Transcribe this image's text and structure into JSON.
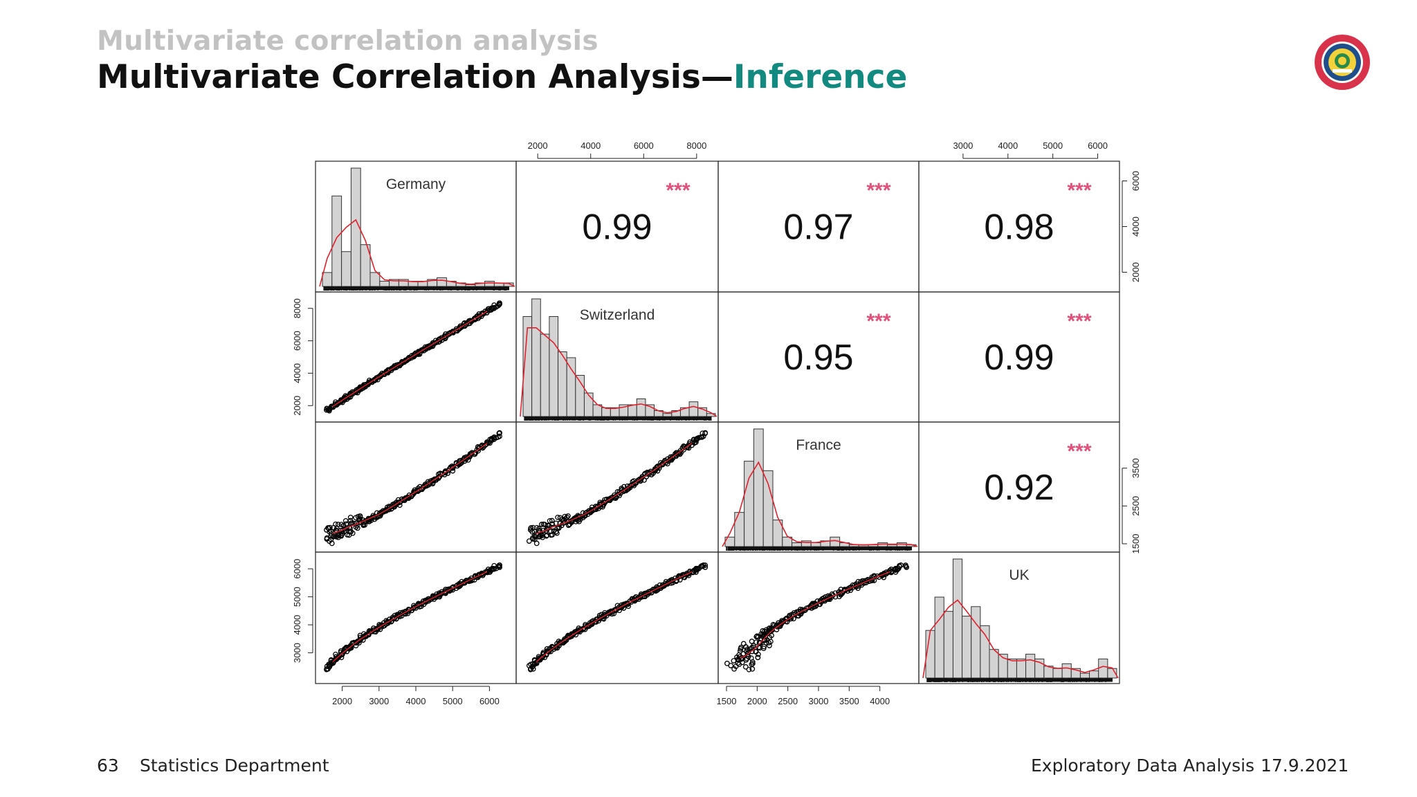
{
  "header": {
    "section": "Multivariate correlation analysis",
    "title_main": "Multivariate Correlation Analysis—",
    "title_accent": "Inference"
  },
  "footer": {
    "page": "63",
    "department": "Statistics Department",
    "course": "Exploratory Data Analysis",
    "date": "17.9.2021"
  },
  "colors": {
    "accent": "#128a80",
    "stars": "#e0507a",
    "density": "#e0202a",
    "bar_fill": "#d3d3d3",
    "logo_ring": "#d8334a"
  },
  "chart_data": {
    "type": "scatter-matrix",
    "variables": [
      "Germany",
      "Switzerland",
      "France",
      "UK"
    ],
    "ranges": {
      "Germany": [
        1500,
        6500
      ],
      "Switzerland": [
        1500,
        8500
      ],
      "France": [
        1500,
        4500
      ],
      "UK": [
        2200,
        6300
      ]
    },
    "ticks": {
      "Germany": [
        2000,
        3000,
        4000,
        5000,
        6000
      ],
      "Switzerland": [
        2000,
        4000,
        6000,
        8000
      ],
      "France": [
        1500,
        2000,
        2500,
        3000,
        3500,
        4000
      ],
      "UK": [
        3000,
        4000,
        5000,
        6000
      ]
    },
    "side_ticks": {
      "Germany_right": [
        2000,
        4000,
        6000
      ],
      "France_right": [
        1500,
        2500,
        3500
      ]
    },
    "correlations": [
      {
        "row": "Germany",
        "col": "Switzerland",
        "r": "0.99",
        "stars": "***"
      },
      {
        "row": "Germany",
        "col": "France",
        "r": "0.97",
        "stars": "***"
      },
      {
        "row": "Germany",
        "col": "UK",
        "r": "0.98",
        "stars": "***"
      },
      {
        "row": "Switzerland",
        "col": "France",
        "r": "0.95",
        "stars": "***"
      },
      {
        "row": "Switzerland",
        "col": "UK",
        "r": "0.99",
        "stars": "***"
      },
      {
        "row": "France",
        "col": "UK",
        "r": "0.92",
        "stars": "***"
      }
    ],
    "histograms": {
      "Germany": [
        8,
        52,
        20,
        68,
        24,
        8,
        3,
        4,
        4,
        3,
        3,
        4,
        5,
        3,
        2,
        1,
        2,
        3,
        2,
        2
      ],
      "Switzerland": [
        34,
        40,
        28,
        34,
        22,
        20,
        14,
        8,
        4,
        3,
        3,
        4,
        4,
        6,
        4,
        2,
        1,
        2,
        3,
        5,
        3,
        1
      ],
      "France": [
        5,
        18,
        45,
        62,
        40,
        14,
        5,
        2,
        3,
        2,
        3,
        5,
        2,
        1,
        1,
        1,
        2,
        1,
        2,
        1
      ],
      "UK": [
        20,
        34,
        28,
        50,
        26,
        30,
        22,
        12,
        10,
        8,
        8,
        10,
        8,
        5,
        4,
        6,
        4,
        2,
        3,
        8,
        4
      ]
    }
  }
}
